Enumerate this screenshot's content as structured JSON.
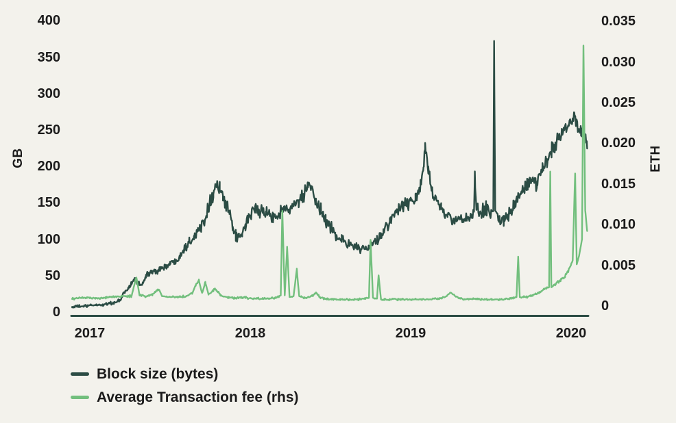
{
  "colors": {
    "background": "#f3f2ec",
    "text": "#1b1b1b",
    "axis_line": "#2b4c44",
    "block_size": "#2b4c44",
    "transaction_fee": "#72bf7d"
  },
  "chart_data": {
    "type": "line",
    "title": "",
    "grid": false,
    "legend_position": "bottom-left",
    "left_axis": {
      "label": "GB",
      "range": [
        0,
        400
      ],
      "ticks": [
        {
          "label": "400",
          "value": 400
        },
        {
          "label": "350",
          "value": 350
        },
        {
          "label": "300",
          "value": 300
        },
        {
          "label": "250",
          "value": 250
        },
        {
          "label": "200",
          "value": 200
        },
        {
          "label": "150",
          "value": 150
        },
        {
          "label": "100",
          "value": 100
        },
        {
          "label": "50",
          "value": 50
        },
        {
          "label": "0",
          "value": 0
        }
      ]
    },
    "right_axis": {
      "label": "ETH",
      "range": [
        0,
        0.035
      ],
      "ticks": [
        {
          "label": "0.035",
          "value": 0.035
        },
        {
          "label": "0.030",
          "value": 0.03
        },
        {
          "label": "0.025",
          "value": 0.025
        },
        {
          "label": "0.020",
          "value": 0.02
        },
        {
          "label": "0.015",
          "value": 0.015
        },
        {
          "label": "0.010",
          "value": 0.01
        },
        {
          "label": "0.005",
          "value": 0.005
        },
        {
          "label": "0",
          "value": 0
        }
      ]
    },
    "x_axis": {
      "range": [
        2016.89,
        2020.11
      ],
      "ticks": [
        {
          "label": "2017",
          "value": 2017
        },
        {
          "label": "2018",
          "value": 2018
        },
        {
          "label": "2019",
          "value": 2019
        },
        {
          "label": "2020",
          "value": 2020
        }
      ]
    },
    "series": [
      {
        "name": "Block size (bytes)",
        "axis": "left",
        "color": "#2b4c44",
        "noise": {
          "base": 2,
          "scale": 0.085,
          "max": 15
        },
        "clamp": [
          3,
          373
        ],
        "points": [
          [
            2016.89,
            7
          ],
          [
            2016.93,
            8
          ],
          [
            2016.97,
            8
          ],
          [
            2017.0,
            9
          ],
          [
            2017.04,
            10
          ],
          [
            2017.08,
            10
          ],
          [
            2017.12,
            12
          ],
          [
            2017.16,
            13
          ],
          [
            2017.19,
            16
          ],
          [
            2017.21,
            26
          ],
          [
            2017.24,
            32
          ],
          [
            2017.26,
            40
          ],
          [
            2017.28,
            45
          ],
          [
            2017.3,
            40
          ],
          [
            2017.33,
            38
          ],
          [
            2017.35,
            50
          ],
          [
            2017.38,
            54
          ],
          [
            2017.41,
            57
          ],
          [
            2017.44,
            60
          ],
          [
            2017.47,
            62
          ],
          [
            2017.5,
            66
          ],
          [
            2017.53,
            70
          ],
          [
            2017.56,
            78
          ],
          [
            2017.59,
            88
          ],
          [
            2017.62,
            97
          ],
          [
            2017.65,
            105
          ],
          [
            2017.68,
            112
          ],
          [
            2017.71,
            126
          ],
          [
            2017.74,
            146
          ],
          [
            2017.77,
            163
          ],
          [
            2017.79,
            176
          ],
          [
            2017.81,
            170
          ],
          [
            2017.83,
            157
          ],
          [
            2017.85,
            146
          ],
          [
            2017.87,
            133
          ],
          [
            2017.89,
            119
          ],
          [
            2017.91,
            105
          ],
          [
            2017.93,
            100
          ],
          [
            2017.95,
            107
          ],
          [
            2017.97,
            119
          ],
          [
            2018.0,
            134
          ],
          [
            2018.03,
            142
          ],
          [
            2018.06,
            139
          ],
          [
            2018.1,
            135
          ],
          [
            2018.14,
            131
          ],
          [
            2018.18,
            137
          ],
          [
            2018.22,
            141
          ],
          [
            2018.26,
            144
          ],
          [
            2018.3,
            151
          ],
          [
            2018.33,
            159
          ],
          [
            2018.36,
            174
          ],
          [
            2018.38,
            167
          ],
          [
            2018.41,
            149
          ],
          [
            2018.44,
            139
          ],
          [
            2018.47,
            127
          ],
          [
            2018.5,
            117
          ],
          [
            2018.53,
            107
          ],
          [
            2018.57,
            99
          ],
          [
            2018.61,
            94
          ],
          [
            2018.65,
            91
          ],
          [
            2018.69,
            87
          ],
          [
            2018.72,
            84
          ],
          [
            2018.75,
            91
          ],
          [
            2018.79,
            99
          ],
          [
            2018.83,
            111
          ],
          [
            2018.87,
            124
          ],
          [
            2018.91,
            137
          ],
          [
            2018.95,
            147
          ],
          [
            2019.0,
            151
          ],
          [
            2019.03,
            157
          ],
          [
            2019.06,
            167
          ],
          [
            2019.08,
            194
          ],
          [
            2019.09,
            226
          ],
          [
            2019.11,
            198
          ],
          [
            2019.13,
            170
          ],
          [
            2019.16,
            153
          ],
          [
            2019.19,
            143
          ],
          [
            2019.23,
            131
          ],
          [
            2019.27,
            125
          ],
          [
            2019.31,
            127
          ],
          [
            2019.35,
            131
          ],
          [
            2019.38,
            128
          ],
          [
            2019.395,
            138
          ],
          [
            2019.4,
            186
          ],
          [
            2019.41,
            140
          ],
          [
            2019.44,
            137
          ],
          [
            2019.47,
            141
          ],
          [
            2019.5,
            137
          ],
          [
            2019.515,
            139
          ],
          [
            2019.52,
            372
          ],
          [
            2019.527,
            139
          ],
          [
            2019.55,
            131
          ],
          [
            2019.58,
            127
          ],
          [
            2019.61,
            134
          ],
          [
            2019.64,
            144
          ],
          [
            2019.67,
            157
          ],
          [
            2019.7,
            167
          ],
          [
            2019.73,
            174
          ],
          [
            2019.76,
            181
          ],
          [
            2019.79,
            177
          ],
          [
            2019.82,
            194
          ],
          [
            2019.85,
            207
          ],
          [
            2019.88,
            224
          ],
          [
            2019.91,
            234
          ],
          [
            2019.94,
            247
          ],
          [
            2019.97,
            254
          ],
          [
            2020.0,
            261
          ],
          [
            2020.02,
            273
          ],
          [
            2020.04,
            257
          ],
          [
            2020.06,
            251
          ],
          [
            2020.08,
            247
          ],
          [
            2020.1,
            231
          ]
        ]
      },
      {
        "name": "Average Transaction fee (rhs)",
        "axis": "right",
        "color": "#72bf7d",
        "noise": {
          "base": 0.00012,
          "scale": 0.045,
          "max": 0.00038
        },
        "clamp": [
          0.00025,
          0.0321
        ],
        "points": [
          [
            2016.89,
            0.0009
          ],
          [
            2016.95,
            0.001
          ],
          [
            2017.0,
            0.001
          ],
          [
            2017.05,
            0.0009
          ],
          [
            2017.1,
            0.001
          ],
          [
            2017.15,
            0.0011
          ],
          [
            2017.2,
            0.0012
          ],
          [
            2017.26,
            0.0012
          ],
          [
            2017.29,
            0.0036
          ],
          [
            2017.31,
            0.0013
          ],
          [
            2017.35,
            0.0012
          ],
          [
            2017.39,
            0.0014
          ],
          [
            2017.43,
            0.0021
          ],
          [
            2017.45,
            0.0012
          ],
          [
            2017.5,
            0.0011
          ],
          [
            2017.55,
            0.0011
          ],
          [
            2017.6,
            0.0012
          ],
          [
            2017.64,
            0.0016
          ],
          [
            2017.66,
            0.0026
          ],
          [
            2017.68,
            0.0031
          ],
          [
            2017.7,
            0.0015
          ],
          [
            2017.72,
            0.0029
          ],
          [
            2017.74,
            0.0014
          ],
          [
            2017.78,
            0.0021
          ],
          [
            2017.82,
            0.0013
          ],
          [
            2017.87,
            0.001
          ],
          [
            2017.92,
            0.001
          ],
          [
            2017.97,
            0.001
          ],
          [
            2018.02,
            0.0009
          ],
          [
            2018.07,
            0.0009
          ],
          [
            2018.12,
            0.0009
          ],
          [
            2018.16,
            0.001
          ],
          [
            2018.19,
            0.0013
          ],
          [
            2018.2,
            0.0117
          ],
          [
            2018.215,
            0.0013
          ],
          [
            2018.23,
            0.0072
          ],
          [
            2018.245,
            0.0011
          ],
          [
            2018.27,
            0.0012
          ],
          [
            2018.29,
            0.0045
          ],
          [
            2018.305,
            0.0012
          ],
          [
            2018.34,
            0.001
          ],
          [
            2018.38,
            0.0012
          ],
          [
            2018.41,
            0.0016
          ],
          [
            2018.44,
            0.001
          ],
          [
            2018.5,
            0.0008
          ],
          [
            2018.56,
            0.0008
          ],
          [
            2018.62,
            0.0008
          ],
          [
            2018.68,
            0.0008
          ],
          [
            2018.74,
            0.001
          ],
          [
            2018.75,
            0.0081
          ],
          [
            2018.765,
            0.001
          ],
          [
            2018.79,
            0.0009
          ],
          [
            2018.8,
            0.0038
          ],
          [
            2018.815,
            0.0008
          ],
          [
            2018.87,
            0.0008
          ],
          [
            2018.93,
            0.0008
          ],
          [
            2019.0,
            0.0008
          ],
          [
            2019.06,
            0.0008
          ],
          [
            2019.12,
            0.0008
          ],
          [
            2019.18,
            0.0009
          ],
          [
            2019.22,
            0.0011
          ],
          [
            2019.25,
            0.0016
          ],
          [
            2019.28,
            0.0012
          ],
          [
            2019.33,
            0.0008
          ],
          [
            2019.39,
            0.0009
          ],
          [
            2019.45,
            0.0008
          ],
          [
            2019.51,
            0.0008
          ],
          [
            2019.57,
            0.0008
          ],
          [
            2019.62,
            0.0009
          ],
          [
            2019.66,
            0.0011
          ],
          [
            2019.67,
            0.0061
          ],
          [
            2019.68,
            0.0011
          ],
          [
            2019.72,
            0.0011
          ],
          [
            2019.76,
            0.0013
          ],
          [
            2019.8,
            0.0016
          ],
          [
            2019.84,
            0.0021
          ],
          [
            2019.863,
            0.0023
          ],
          [
            2019.87,
            0.0163
          ],
          [
            2019.877,
            0.0023
          ],
          [
            2019.9,
            0.0026
          ],
          [
            2019.93,
            0.0031
          ],
          [
            2019.96,
            0.0036
          ],
          [
            2019.99,
            0.0046
          ],
          [
            2020.01,
            0.0056
          ],
          [
            2020.025,
            0.0163
          ],
          [
            2020.035,
            0.0051
          ],
          [
            2020.05,
            0.0062
          ],
          [
            2020.068,
            0.0082
          ],
          [
            2020.077,
            0.032
          ],
          [
            2020.088,
            0.0118
          ],
          [
            2020.1,
            0.0092
          ]
        ]
      }
    ]
  }
}
